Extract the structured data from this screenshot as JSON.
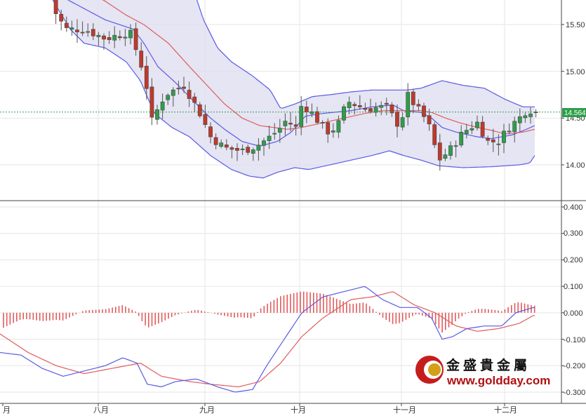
{
  "chart_data": [
    {
      "type": "candlestick",
      "panel": "price",
      "overlays": [
        "bollinger-upper",
        "bollinger-middle",
        "bollinger-lower",
        "moving-average-short",
        "moving-average-long"
      ],
      "y_ticks": [
        "15.50",
        "15.00",
        "14.50",
        "14.00"
      ],
      "ylim": [
        13.64,
        16.28
      ],
      "last_price": "14.564",
      "last_price_value": 14.564,
      "colors": {
        "up": "#2e9e4a",
        "down": "#c0392b",
        "band_fill": "#dcdcef",
        "band_line": "#5a5ae6",
        "ma_short": "#5a5ae6",
        "ma_long": "#e05c5c",
        "price_line": "#2e9e4a"
      }
    },
    {
      "type": "macd",
      "panel": "indicator",
      "series": [
        {
          "role": "macd-line",
          "color": "#5a5ae6"
        },
        {
          "role": "signal-line",
          "color": "#e05c5c"
        },
        {
          "role": "histogram",
          "color": "#e05c5c"
        }
      ],
      "y_ticks": [
        "0.400",
        "0.300",
        "0.200",
        "0.100",
        "0.000",
        "-0.100",
        "-0.200",
        "-0.300"
      ],
      "y_tick_values": [
        0.4,
        0.3,
        0.2,
        0.1,
        0.0,
        -0.1,
        -0.2,
        -0.3
      ],
      "ylim": [
        -0.33,
        0.41
      ]
    }
  ],
  "x_axis": {
    "labels": [
      "月",
      "八月",
      "九月",
      "十月",
      "十一月",
      "十二月"
    ]
  },
  "watermark": {
    "name": "金盛貴金屬",
    "url": "www.goldday.com"
  }
}
